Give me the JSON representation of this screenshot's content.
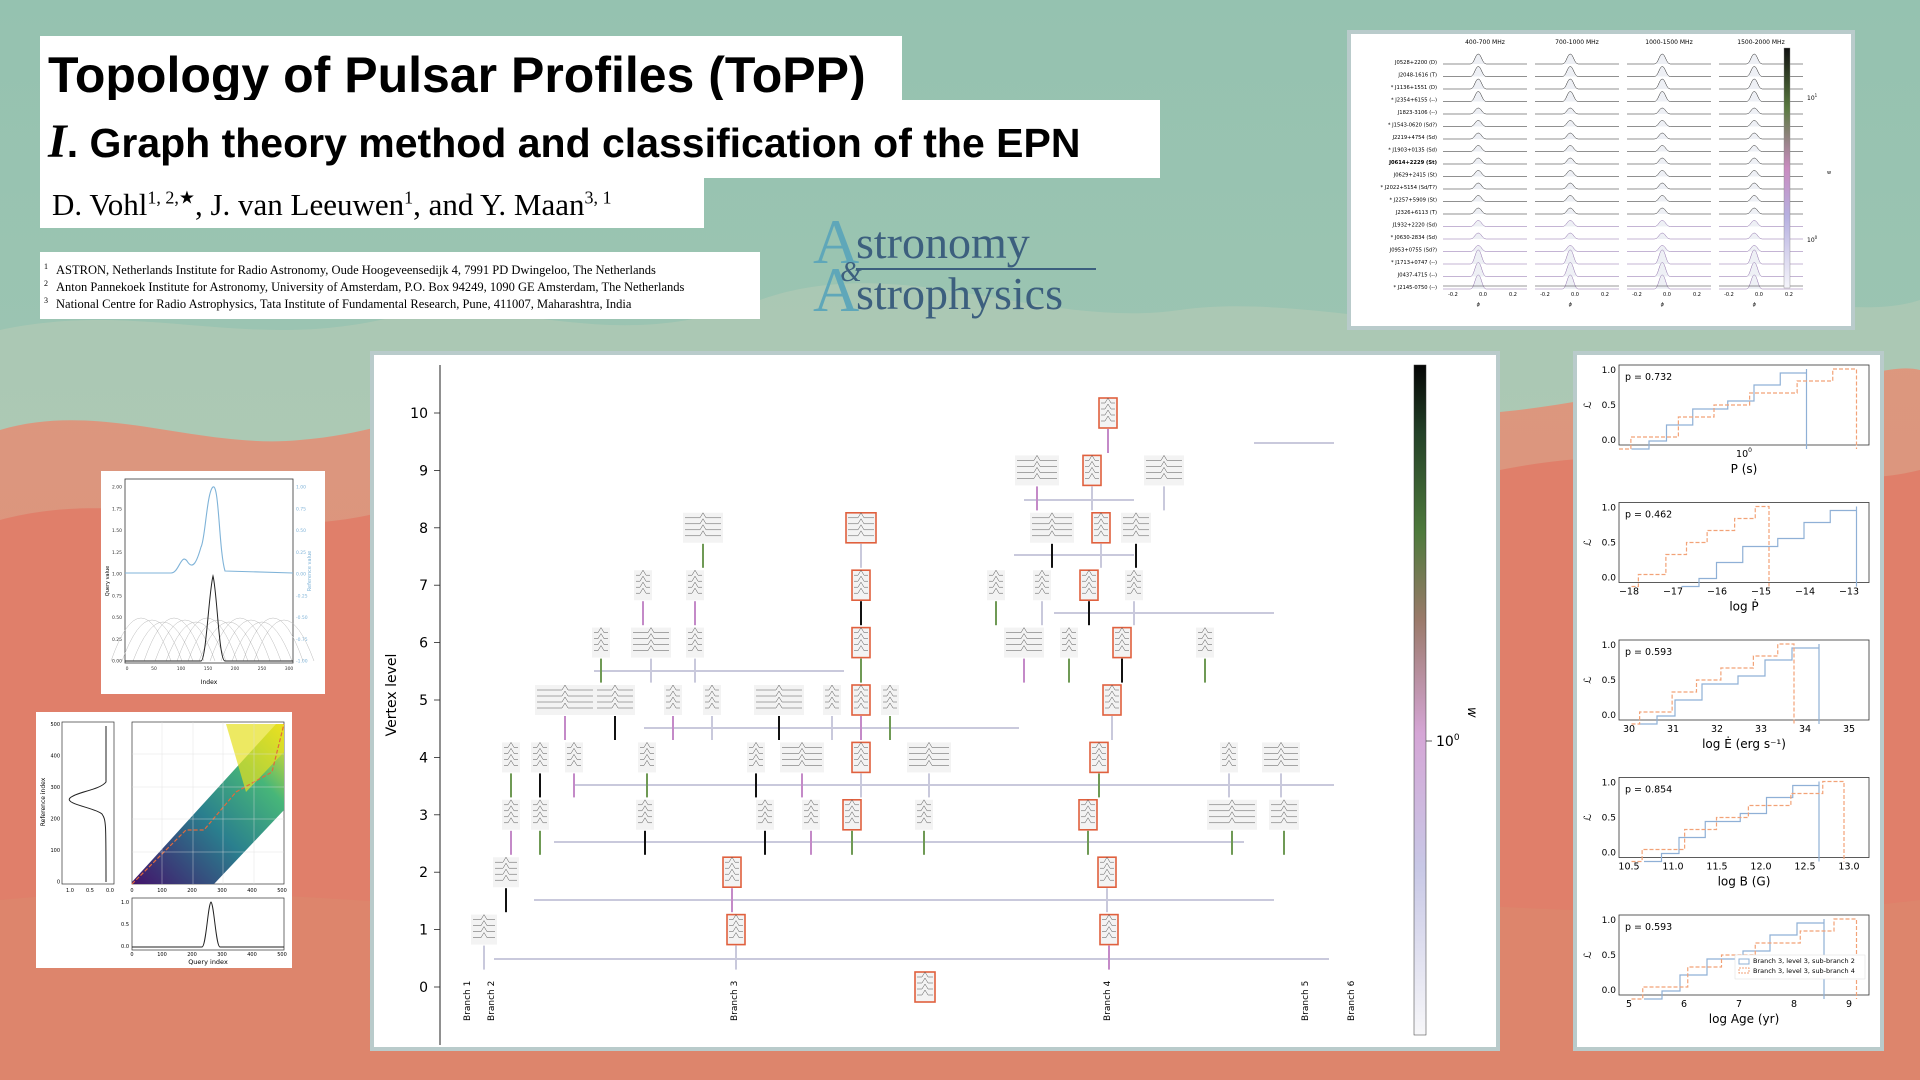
{
  "title": "Topology of Pulsar Profiles (ToPP)",
  "subtitle_numeral": "I",
  "subtitle_rest": ". Graph theory method and classification of the EPN",
  "authors": [
    {
      "name": "D. Vohl",
      "sup": "1, 2,★"
    },
    {
      "name": "J. van Leeuwen",
      "sup": "1"
    },
    {
      "name": "Y. Maan",
      "sup": "3, 1"
    }
  ],
  "authors_sep1": ", ",
  "authors_sep2": ", and ",
  "affiliations": [
    {
      "num": "1",
      "text": "ASTRON, Netherlands Institute for Radio Astronomy, Oude Hoogeveensedijk 4, 7991 PD Dwingeloo, The Netherlands"
    },
    {
      "num": "2",
      "text": "Anton Pannekoek Institute for Astronomy, University of Amsterdam, P.O. Box 94249, 1090 GE Amsterdam, The Netherlands"
    },
    {
      "num": "3",
      "text": "National Centre for Radio Astrophysics, Tata Institute of Fundamental Research, Pune, 411007, Maharashtra, India"
    }
  ],
  "journal": {
    "line1_big": "A",
    "line1_rest": "stronomy",
    "amp": "&",
    "line2_big": "A",
    "line2_rest": "strophysics"
  },
  "colors": {
    "background": "#9cc2ae",
    "mountain": "#e58a73",
    "highlight": "#e0603e",
    "edge": "#c9c9dc",
    "frame": "#b9cbcb",
    "hist_blue": "#8fb0d6",
    "hist_orange": "#f2a277"
  },
  "tree_figure": {
    "ylabel": "Vertex level",
    "colorbar_label": "w",
    "colorbar_tick": "10",
    "colorbar_tick_exp": "0",
    "levels": [
      "0",
      "1",
      "2",
      "3",
      "4",
      "5",
      "6",
      "7",
      "8",
      "9",
      "10"
    ],
    "branches": [
      "Branch 1",
      "Branch 2",
      "Branch 3",
      "Branch 4",
      "Branch 5",
      "Branch 6"
    ]
  },
  "frequency_figure": {
    "bands": [
      "400-700 MHz",
      "700-1000 MHz",
      "1000-1500 MHz",
      "1500-2000 MHz"
    ],
    "pulsars": [
      "J0528+2200 (D)",
      "J2048-1616 (T)",
      "* J1136+1551 (D)",
      "* J2354+6155 (--)",
      "J1823-3106 (--)",
      "* J1543-0620 (Sd?)",
      "J2219+4754 (Sd)",
      "* J1903+0135 (Sd)",
      "J0614+2229 (St)",
      "J0629+2415 (St)",
      "* J2022+5154 (Sd/T?)",
      "* J2257+5909 (St)",
      "J2326+6113 (T)",
      "J1932+2220 (Sd)",
      "* J0630-2834 (Sd)",
      "J0953+0755 (Sd?)",
      "* J1713+0747 (--)",
      "J0437-4715 (--)",
      "* J2145-0750 (--)"
    ],
    "xticks": [
      "-0.2",
      "0.0",
      "0.2"
    ],
    "xlabel": "ϕ",
    "cbar_tick1": "10",
    "cbar_tick1_exp": "1",
    "cbar_tick2": "10",
    "cbar_tick2_exp": "0",
    "cbar_label": "w"
  },
  "match_figure": {
    "ylabel": "Query value",
    "ylabel2": "Reference value",
    "xlabel": "Index",
    "yticks": [
      "2.00",
      "1.75",
      "1.50",
      "1.25",
      "1.00",
      "0.75",
      "0.50",
      "0.25",
      "0.00"
    ],
    "yticks2": [
      "1.00",
      "0.75",
      "0.50",
      "0.25",
      "0.00",
      "-0.25",
      "-0.50",
      "-0.75",
      "-1.00"
    ],
    "xticks": [
      "0",
      "50",
      "100",
      "150",
      "200",
      "250",
      "300"
    ]
  },
  "dtw_figure": {
    "ylabel": "Reference index",
    "xlabel": "Query index",
    "yticks": [
      "500",
      "400",
      "300",
      "200",
      "100",
      "0"
    ],
    "side_xticks": [
      "1.0",
      "0.5",
      "0.0"
    ],
    "xticks": [
      "0",
      "100",
      "200",
      "300",
      "400",
      "500"
    ],
    "small_yticks": [
      "1.0",
      "0.5",
      "0.0"
    ]
  },
  "cdf_figure": {
    "ylabel": "ℒ",
    "yticks": [
      "1.0",
      "0.5",
      "0.0"
    ],
    "panels": [
      {
        "p": "p = 0.732",
        "xlabel": "P (s)",
        "xticks": [
          "10"
        ],
        "xtick_exp": "0"
      },
      {
        "p": "p = 0.462",
        "xlabel": "log Ṗ",
        "xticks": [
          "−18",
          "−17",
          "−16",
          "−15",
          "−14",
          "−13"
        ]
      },
      {
        "p": "p = 0.593",
        "xlabel": "log Ė (erg s⁻¹)",
        "xticks": [
          "30",
          "31",
          "32",
          "33",
          "34",
          "35"
        ]
      },
      {
        "p": "p = 0.854",
        "xlabel": "log B (G)",
        "xticks": [
          "10.5",
          "11.0",
          "11.5",
          "12.0",
          "12.5",
          "13.0"
        ]
      },
      {
        "p": "p = 0.593",
        "xlabel": "log  Age (yr)",
        "xticks": [
          "5",
          "6",
          "7",
          "8",
          "9"
        ]
      }
    ],
    "legend": [
      "Branch 3, level 3, sub-branch 2",
      "Branch 3, level 3, sub-branch 4"
    ]
  }
}
